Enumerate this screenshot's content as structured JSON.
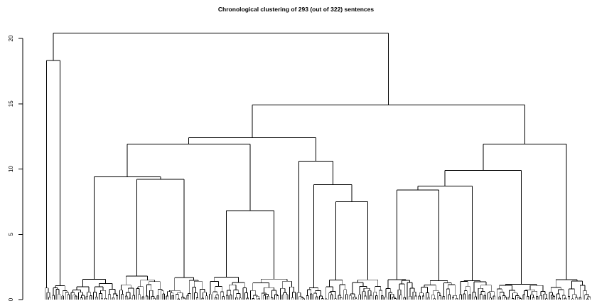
{
  "chart_data": {
    "type": "dendrogram",
    "title": "Chronological clustering of 293 (out of 322) sentences",
    "xlabel": "",
    "ylabel": "",
    "ylim": [
      0,
      20.5
    ],
    "y_ticks": [
      0,
      5,
      10,
      15,
      20
    ],
    "grid": false,
    "leaf_count": 293,
    "merges": [
      {
        "left": 0,
        "right": 293,
        "height": 20.4
      },
      {
        "left": 0,
        "right": 14,
        "height": 18.3
      },
      {
        "left": 0,
        "right": 4,
        "height": 3.8
      },
      {
        "left": 14,
        "right": 293,
        "height": 14.9
      },
      {
        "left": 14,
        "right": 182,
        "height": 12.4
      },
      {
        "left": 182,
        "right": 293,
        "height": 11.9
      },
      {
        "left": 14,
        "right": 135,
        "height": 11.9
      },
      {
        "left": 135,
        "right": 182,
        "height": 10.6
      },
      {
        "left": 14,
        "right": 88,
        "height": 9.4
      },
      {
        "left": 14,
        "right": 40,
        "height": 5.1
      },
      {
        "left": 40,
        "right": 88,
        "height": 9.2
      },
      {
        "left": 40,
        "right": 65,
        "height": 9.1
      },
      {
        "left": 88,
        "right": 135,
        "height": 6.8
      },
      {
        "left": 88,
        "right": 110,
        "height": 6.1
      },
      {
        "left": 110,
        "right": 135,
        "height": 6.1
      },
      {
        "left": 140,
        "right": 182,
        "height": 8.8
      },
      {
        "left": 150,
        "right": 182,
        "height": 7.5
      },
      {
        "left": 163,
        "right": 182,
        "height": 6.8
      },
      {
        "left": 182,
        "right": 270,
        "height": 9.9
      },
      {
        "left": 270,
        "right": 293,
        "height": 9.9
      },
      {
        "left": 182,
        "right": 242,
        "height": 8.7
      },
      {
        "left": 242,
        "right": 270,
        "height": 8.1
      },
      {
        "left": 182,
        "right": 222,
        "height": 8.4
      },
      {
        "left": 200,
        "right": 222,
        "height": 6.8
      },
      {
        "left": 222,
        "right": 242,
        "height": 6.6
      }
    ]
  }
}
